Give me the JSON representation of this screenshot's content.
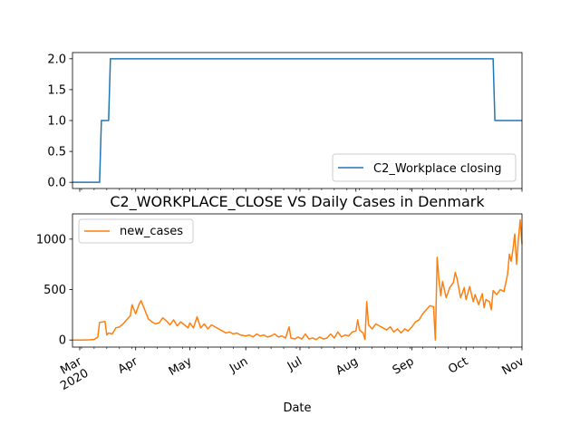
{
  "chart_data": [
    {
      "type": "line",
      "title": "",
      "xlabel": "",
      "ylabel": "",
      "x_range": [
        "2020-02-26",
        "2020-11-01"
      ],
      "ylim": [
        -0.1,
        2.1
      ],
      "yticks": [
        "0.0",
        "0.5",
        "1.0",
        "1.5",
        "2.0"
      ],
      "grid": false,
      "legend_position": "lower-right",
      "series": [
        {
          "name": "C2_Workplace closing",
          "color": "#1f77b4",
          "points": [
            [
              "2020-02-26",
              0
            ],
            [
              "2020-03-12",
              0
            ],
            [
              "2020-03-13",
              1
            ],
            [
              "2020-03-17",
              1
            ],
            [
              "2020-03-18",
              2
            ],
            [
              "2020-10-16",
              2
            ],
            [
              "2020-10-17",
              1
            ],
            [
              "2020-11-01",
              1
            ]
          ]
        }
      ]
    },
    {
      "type": "line",
      "title": "C2_WORKPLACE_CLOSE VS Daily Cases in Denmark",
      "xlabel": "Date",
      "ylabel": "",
      "x_range": [
        "2020-02-26",
        "2020-11-01"
      ],
      "ylim": [
        -70,
        1250
      ],
      "yticks": [
        "0",
        "500",
        "1000"
      ],
      "grid": false,
      "legend_position": "upper-left",
      "xtick_labels": [
        {
          "date": "2020-03-01",
          "label": "Mar",
          "sub": "2020"
        },
        {
          "date": "2020-04-01",
          "label": "Apr"
        },
        {
          "date": "2020-05-01",
          "label": "May"
        },
        {
          "date": "2020-06-01",
          "label": "Jun"
        },
        {
          "date": "2020-07-01",
          "label": "Jul"
        },
        {
          "date": "2020-08-01",
          "label": "Aug"
        },
        {
          "date": "2020-09-01",
          "label": "Sep"
        },
        {
          "date": "2020-10-01",
          "label": "Oct"
        },
        {
          "date": "2020-11-01",
          "label": "Nov"
        }
      ],
      "series": [
        {
          "name": "new_cases",
          "color": "#ff7f0e",
          "points": [
            [
              "2020-02-26",
              0
            ],
            [
              "2020-03-02",
              0
            ],
            [
              "2020-03-06",
              2
            ],
            [
              "2020-03-09",
              5
            ],
            [
              "2020-03-11",
              30
            ],
            [
              "2020-03-12",
              175
            ],
            [
              "2020-03-14",
              180
            ],
            [
              "2020-03-15",
              185
            ],
            [
              "2020-03-16",
              50
            ],
            [
              "2020-03-17",
              70
            ],
            [
              "2020-03-19",
              60
            ],
            [
              "2020-03-21",
              120
            ],
            [
              "2020-03-23",
              130
            ],
            [
              "2020-03-25",
              160
            ],
            [
              "2020-03-27",
              200
            ],
            [
              "2020-03-29",
              240
            ],
            [
              "2020-03-30",
              350
            ],
            [
              "2020-04-01",
              260
            ],
            [
              "2020-04-03",
              360
            ],
            [
              "2020-04-04",
              390
            ],
            [
              "2020-04-06",
              300
            ],
            [
              "2020-04-08",
              210
            ],
            [
              "2020-04-10",
              180
            ],
            [
              "2020-04-12",
              160
            ],
            [
              "2020-04-14",
              170
            ],
            [
              "2020-04-16",
              220
            ],
            [
              "2020-04-18",
              190
            ],
            [
              "2020-04-20",
              150
            ],
            [
              "2020-04-22",
              200
            ],
            [
              "2020-04-24",
              140
            ],
            [
              "2020-04-26",
              180
            ],
            [
              "2020-04-28",
              150
            ],
            [
              "2020-04-30",
              120
            ],
            [
              "2020-05-01",
              170
            ],
            [
              "2020-05-03",
              120
            ],
            [
              "2020-05-05",
              230
            ],
            [
              "2020-05-07",
              120
            ],
            [
              "2020-05-09",
              160
            ],
            [
              "2020-05-11",
              110
            ],
            [
              "2020-05-13",
              150
            ],
            [
              "2020-05-15",
              130
            ],
            [
              "2020-05-17",
              110
            ],
            [
              "2020-05-19",
              90
            ],
            [
              "2020-05-21",
              70
            ],
            [
              "2020-05-23",
              80
            ],
            [
              "2020-05-25",
              60
            ],
            [
              "2020-05-27",
              70
            ],
            [
              "2020-05-29",
              50
            ],
            [
              "2020-06-01",
              40
            ],
            [
              "2020-06-03",
              50
            ],
            [
              "2020-06-05",
              30
            ],
            [
              "2020-06-07",
              60
            ],
            [
              "2020-06-09",
              40
            ],
            [
              "2020-06-11",
              50
            ],
            [
              "2020-06-13",
              30
            ],
            [
              "2020-06-15",
              40
            ],
            [
              "2020-06-17",
              60
            ],
            [
              "2020-06-19",
              30
            ],
            [
              "2020-06-21",
              40
            ],
            [
              "2020-06-23",
              20
            ],
            [
              "2020-06-25",
              130
            ],
            [
              "2020-06-26",
              20
            ],
            [
              "2020-06-28",
              10
            ],
            [
              "2020-06-30",
              30
            ],
            [
              "2020-07-02",
              10
            ],
            [
              "2020-07-04",
              60
            ],
            [
              "2020-07-06",
              10
            ],
            [
              "2020-07-08",
              20
            ],
            [
              "2020-07-10",
              5
            ],
            [
              "2020-07-12",
              30
            ],
            [
              "2020-07-14",
              10
            ],
            [
              "2020-07-16",
              20
            ],
            [
              "2020-07-18",
              60
            ],
            [
              "2020-07-20",
              20
            ],
            [
              "2020-07-22",
              80
            ],
            [
              "2020-07-24",
              30
            ],
            [
              "2020-07-26",
              50
            ],
            [
              "2020-07-28",
              40
            ],
            [
              "2020-07-30",
              80
            ],
            [
              "2020-08-01",
              90
            ],
            [
              "2020-08-02",
              200
            ],
            [
              "2020-08-03",
              100
            ],
            [
              "2020-08-05",
              70
            ],
            [
              "2020-08-06",
              5
            ],
            [
              "2020-08-07",
              380
            ],
            [
              "2020-08-08",
              150
            ],
            [
              "2020-08-10",
              110
            ],
            [
              "2020-08-12",
              160
            ],
            [
              "2020-08-14",
              140
            ],
            [
              "2020-08-16",
              120
            ],
            [
              "2020-08-18",
              100
            ],
            [
              "2020-08-20",
              130
            ],
            [
              "2020-08-22",
              80
            ],
            [
              "2020-08-24",
              110
            ],
            [
              "2020-08-26",
              70
            ],
            [
              "2020-08-28",
              110
            ],
            [
              "2020-08-30",
              90
            ],
            [
              "2020-09-01",
              130
            ],
            [
              "2020-09-03",
              180
            ],
            [
              "2020-09-05",
              200
            ],
            [
              "2020-09-07",
              260
            ],
            [
              "2020-09-09",
              300
            ],
            [
              "2020-09-11",
              340
            ],
            [
              "2020-09-13",
              330
            ],
            [
              "2020-09-14",
              0
            ],
            [
              "2020-09-15",
              820
            ],
            [
              "2020-09-16",
              600
            ],
            [
              "2020-09-17",
              440
            ],
            [
              "2020-09-18",
              580
            ],
            [
              "2020-09-20",
              420
            ],
            [
              "2020-09-22",
              520
            ],
            [
              "2020-09-24",
              570
            ],
            [
              "2020-09-25",
              670
            ],
            [
              "2020-09-26",
              610
            ],
            [
              "2020-09-28",
              420
            ],
            [
              "2020-09-30",
              520
            ],
            [
              "2020-10-01",
              400
            ],
            [
              "2020-10-03",
              530
            ],
            [
              "2020-10-05",
              380
            ],
            [
              "2020-10-06",
              450
            ],
            [
              "2020-10-08",
              350
            ],
            [
              "2020-10-10",
              460
            ],
            [
              "2020-10-11",
              320
            ],
            [
              "2020-10-12",
              400
            ],
            [
              "2020-10-14",
              380
            ],
            [
              "2020-10-15",
              300
            ],
            [
              "2020-10-16",
              490
            ],
            [
              "2020-10-18",
              450
            ],
            [
              "2020-10-20",
              500
            ],
            [
              "2020-10-22",
              480
            ],
            [
              "2020-10-24",
              650
            ],
            [
              "2020-10-25",
              850
            ],
            [
              "2020-10-26",
              780
            ],
            [
              "2020-10-27",
              900
            ],
            [
              "2020-10-28",
              1050
            ],
            [
              "2020-10-29",
              750
            ],
            [
              "2020-10-30",
              1000
            ],
            [
              "2020-10-31",
              1190
            ],
            [
              "2020-11-01",
              950
            ]
          ]
        }
      ]
    }
  ]
}
